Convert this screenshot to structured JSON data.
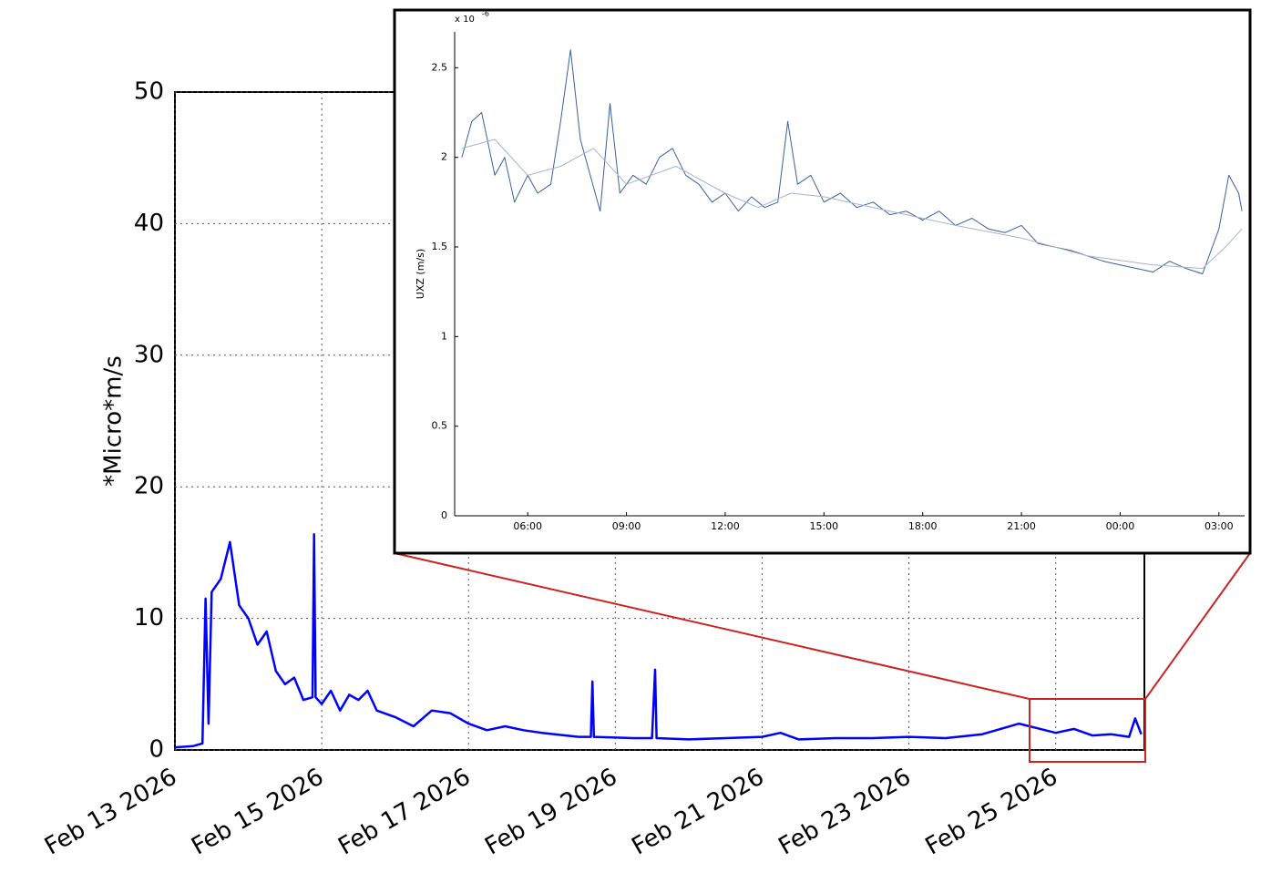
{
  "chart_data": [
    {
      "type": "line",
      "ylabel": "*Micro*m/s",
      "grid": true,
      "xlim": [
        "2026-02-13T00:00",
        "2026-02-26T05:00"
      ],
      "xticks": [
        {
          "value": "2026-02-13T00:00",
          "label": "Feb 13 2026"
        },
        {
          "value": "2026-02-15T00:00",
          "label": "Feb 15 2026"
        },
        {
          "value": "2026-02-17T00:00",
          "label": "Feb 17 2026"
        },
        {
          "value": "2026-02-19T00:00",
          "label": "Feb 19 2026"
        },
        {
          "value": "2026-02-21T00:00",
          "label": "Feb 21 2026"
        },
        {
          "value": "2026-02-23T00:00",
          "label": "Feb 23 2026"
        },
        {
          "value": "2026-02-25T00:00",
          "label": "Feb 25 2026"
        }
      ],
      "ylim": [
        0,
        50
      ],
      "yticks": [
        0,
        10,
        20,
        30,
        40,
        50
      ],
      "x": [
        "2026-02-13T00:00",
        "2026-02-13T06:00",
        "2026-02-13T09:00",
        "2026-02-13T10:00",
        "2026-02-13T11:00",
        "2026-02-13T12:00",
        "2026-02-13T15:00",
        "2026-02-13T18:00",
        "2026-02-13T21:00",
        "2026-02-14T00:00",
        "2026-02-14T03:00",
        "2026-02-14T06:00",
        "2026-02-14T09:00",
        "2026-02-14T12:00",
        "2026-02-14T15:00",
        "2026-02-14T18:00",
        "2026-02-14T21:00",
        "2026-02-14T21:30",
        "2026-02-14T22:00",
        "2026-02-15T00:00",
        "2026-02-15T03:00",
        "2026-02-15T06:00",
        "2026-02-15T09:00",
        "2026-02-15T12:00",
        "2026-02-15T15:00",
        "2026-02-15T18:00",
        "2026-02-16T00:00",
        "2026-02-16T06:00",
        "2026-02-16T12:00",
        "2026-02-16T18:00",
        "2026-02-17T00:00",
        "2026-02-17T06:00",
        "2026-02-17T12:00",
        "2026-02-17T18:00",
        "2026-02-18T00:00",
        "2026-02-18T12:00",
        "2026-02-18T16:00",
        "2026-02-18T16:30",
        "2026-02-18T17:00",
        "2026-02-19T06:00",
        "2026-02-19T12:00",
        "2026-02-19T13:00",
        "2026-02-19T13:30",
        "2026-02-20T00:00",
        "2026-02-20T12:00",
        "2026-02-21T00:00",
        "2026-02-21T06:00",
        "2026-02-21T12:00",
        "2026-02-22T00:00",
        "2026-02-22T12:00",
        "2026-02-23T00:00",
        "2026-02-23T12:00",
        "2026-02-24T00:00",
        "2026-02-24T06:00",
        "2026-02-24T12:00",
        "2026-02-25T00:00",
        "2026-02-25T06:00",
        "2026-02-25T12:00",
        "2026-02-25T18:00",
        "2026-02-26T00:00",
        "2026-02-26T02:00",
        "2026-02-26T04:00"
      ],
      "series": [
        {
          "color": "#0000ff",
          "values": [
            0.2,
            0.3,
            0.5,
            11.5,
            2,
            12,
            13,
            15.8,
            11,
            10,
            8,
            9,
            6,
            5,
            5.5,
            3.8,
            4,
            16.4,
            4,
            3.5,
            4.5,
            3,
            4.2,
            3.8,
            4.5,
            3,
            2.5,
            1.8,
            3,
            2.8,
            2,
            1.5,
            1.8,
            1.5,
            1.3,
            1.0,
            1,
            5.2,
            1,
            0.9,
            0.9,
            6.1,
            0.9,
            0.8,
            0.9,
            1.0,
            1.3,
            0.8,
            0.9,
            0.9,
            1.0,
            0.9,
            1.2,
            1.6,
            2,
            1.3,
            1.6,
            1.1,
            1.2,
            1.0,
            2.4,
            1.2
          ]
        }
      ]
    },
    {
      "type": "line",
      "ylabel": "UXZ (m/s)",
      "y_multiplier": "x 10",
      "y_exponent": "-6",
      "grid": false,
      "xlim": [
        3.78,
        27.78
      ],
      "xticks": [
        {
          "value": 6,
          "label": "06:00"
        },
        {
          "value": 9,
          "label": "09:00"
        },
        {
          "value": 12,
          "label": "12:00"
        },
        {
          "value": 15,
          "label": "15:00"
        },
        {
          "value": 18,
          "label": "18:00"
        },
        {
          "value": 21,
          "label": "21:00"
        },
        {
          "value": 24,
          "label": "00:00"
        },
        {
          "value": 27,
          "label": "03:00"
        }
      ],
      "ylim": [
        0,
        2.7
      ],
      "yticks": [
        0,
        0.5,
        1,
        1.5,
        2,
        2.5
      ],
      "series": [
        {
          "color": "#3a5fa0",
          "x": [
            4.0,
            4.3,
            4.6,
            5.0,
            5.3,
            5.6,
            6.0,
            6.3,
            6.7,
            7.0,
            7.3,
            7.6,
            7.9,
            8.2,
            8.5,
            8.8,
            9.2,
            9.6,
            10.0,
            10.4,
            10.8,
            11.2,
            11.6,
            12.0,
            12.4,
            12.8,
            13.2,
            13.6,
            13.9,
            14.2,
            14.6,
            15.0,
            15.5,
            16.0,
            16.5,
            17.0,
            17.5,
            18.0,
            18.5,
            19.0,
            19.5,
            20.0,
            20.5,
            21.0,
            21.5,
            22.0,
            22.5,
            23.0,
            23.5,
            24.0,
            24.5,
            25.0,
            25.5,
            26.0,
            26.5,
            27.0,
            27.3,
            27.6,
            27.7
          ],
          "values": [
            2.0,
            2.2,
            2.25,
            1.9,
            2.0,
            1.75,
            1.9,
            1.8,
            1.85,
            2.2,
            2.6,
            2.1,
            1.9,
            1.7,
            2.3,
            1.8,
            1.9,
            1.85,
            2.0,
            2.05,
            1.9,
            1.85,
            1.75,
            1.8,
            1.7,
            1.78,
            1.72,
            1.75,
            2.2,
            1.85,
            1.9,
            1.75,
            1.8,
            1.72,
            1.75,
            1.68,
            1.7,
            1.65,
            1.7,
            1.62,
            1.66,
            1.6,
            1.58,
            1.62,
            1.52,
            1.5,
            1.48,
            1.45,
            1.42,
            1.4,
            1.38,
            1.36,
            1.42,
            1.38,
            1.35,
            1.6,
            1.9,
            1.8,
            1.7
          ]
        },
        {
          "color": "#a8b2cc",
          "x": [
            4.0,
            5,
            6,
            7,
            8,
            9,
            10.5,
            12,
            13,
            14,
            15,
            17,
            19,
            21,
            23,
            25,
            26.5,
            27.2,
            27.7
          ],
          "values": [
            2.05,
            2.1,
            1.9,
            1.95,
            2.05,
            1.85,
            1.95,
            1.8,
            1.72,
            1.8,
            1.78,
            1.7,
            1.62,
            1.55,
            1.45,
            1.4,
            1.38,
            1.5,
            1.6
          ]
        }
      ]
    }
  ]
}
